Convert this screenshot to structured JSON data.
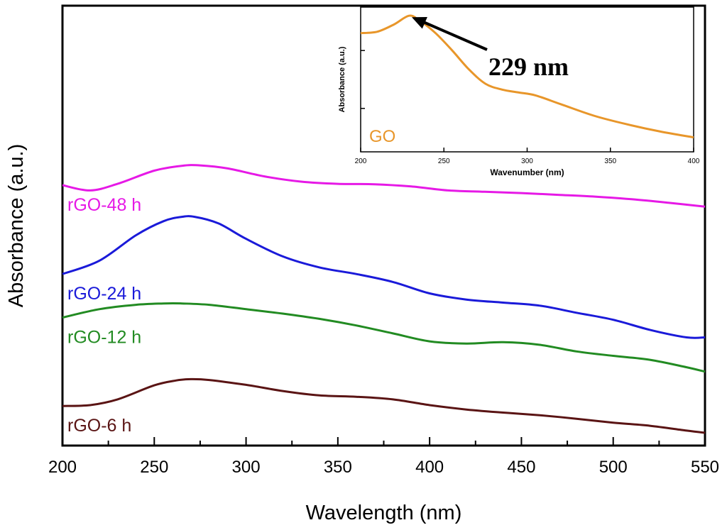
{
  "chart_data": [
    {
      "type": "line",
      "title": "",
      "xlabel": "Wavelength (nm)",
      "ylabel": "Absorbance (a.u.)",
      "xlim": [
        200,
        550
      ],
      "ylim": [
        0,
        1
      ],
      "xticks": [
        200,
        250,
        300,
        350,
        400,
        450,
        500,
        550
      ],
      "grid": false,
      "legend": "inline labels on left",
      "series": [
        {
          "name": "rGO-48 h",
          "color": "#e619e6",
          "x": [
            200,
            215,
            230,
            250,
            265,
            275,
            290,
            310,
            330,
            350,
            370,
            390,
            410,
            430,
            450,
            470,
            490,
            510,
            530,
            550
          ],
          "y": [
            0.592,
            0.58,
            0.595,
            0.625,
            0.636,
            0.637,
            0.63,
            0.612,
            0.6,
            0.595,
            0.594,
            0.589,
            0.58,
            0.577,
            0.574,
            0.57,
            0.566,
            0.56,
            0.552,
            0.543
          ]
        },
        {
          "name": "rGO-24 h",
          "color": "#1a1ad9",
          "x": [
            200,
            220,
            240,
            255,
            265,
            272,
            285,
            300,
            320,
            340,
            360,
            380,
            400,
            420,
            440,
            460,
            480,
            500,
            520,
            540,
            550
          ],
          "y": [
            0.39,
            0.42,
            0.478,
            0.51,
            0.52,
            0.52,
            0.505,
            0.47,
            0.43,
            0.405,
            0.39,
            0.372,
            0.346,
            0.332,
            0.325,
            0.318,
            0.302,
            0.286,
            0.263,
            0.246,
            0.246
          ]
        },
        {
          "name": "rGO-12 h",
          "color": "#228b22",
          "x": [
            200,
            220,
            240,
            255,
            265,
            280,
            300,
            320,
            340,
            360,
            380,
            400,
            420,
            440,
            460,
            480,
            500,
            520,
            540,
            550
          ],
          "y": [
            0.291,
            0.31,
            0.32,
            0.323,
            0.323,
            0.32,
            0.31,
            0.3,
            0.288,
            0.273,
            0.255,
            0.237,
            0.232,
            0.235,
            0.229,
            0.214,
            0.204,
            0.195,
            0.178,
            0.168
          ]
        },
        {
          "name": "rGO-6 h",
          "color": "#5a1414",
          "x": [
            200,
            215,
            230,
            250,
            262,
            270,
            280,
            300,
            320,
            340,
            360,
            380,
            400,
            420,
            440,
            460,
            480,
            500,
            520,
            540,
            550
          ],
          "y": [
            0.09,
            0.092,
            0.105,
            0.137,
            0.148,
            0.151,
            0.149,
            0.138,
            0.124,
            0.114,
            0.111,
            0.105,
            0.092,
            0.082,
            0.075,
            0.069,
            0.061,
            0.052,
            0.045,
            0.034,
            0.029
          ]
        }
      ]
    },
    {
      "type": "line",
      "title": "",
      "xlabel": "Wavenumber (nm)",
      "ylabel": "Absorbance (a.u.)",
      "xlim": [
        200,
        400
      ],
      "ylim": [
        0,
        1
      ],
      "xticks": [
        200,
        250,
        300,
        350,
        400
      ],
      "grid": false,
      "legend": "bottom-left",
      "series": [
        {
          "name": "GO",
          "color": "#e8962a",
          "x": [
            200,
            210,
            220,
            229,
            235,
            245,
            255,
            265,
            275,
            285,
            295,
            305,
            320,
            340,
            360,
            380,
            400
          ],
          "y": [
            0.82,
            0.83,
            0.88,
            0.94,
            0.91,
            0.82,
            0.7,
            0.57,
            0.47,
            0.43,
            0.41,
            0.39,
            0.33,
            0.25,
            0.19,
            0.14,
            0.1
          ]
        }
      ],
      "annotations": [
        {
          "text": "229 nm",
          "x": 229,
          "y": 0.94
        }
      ]
    }
  ]
}
